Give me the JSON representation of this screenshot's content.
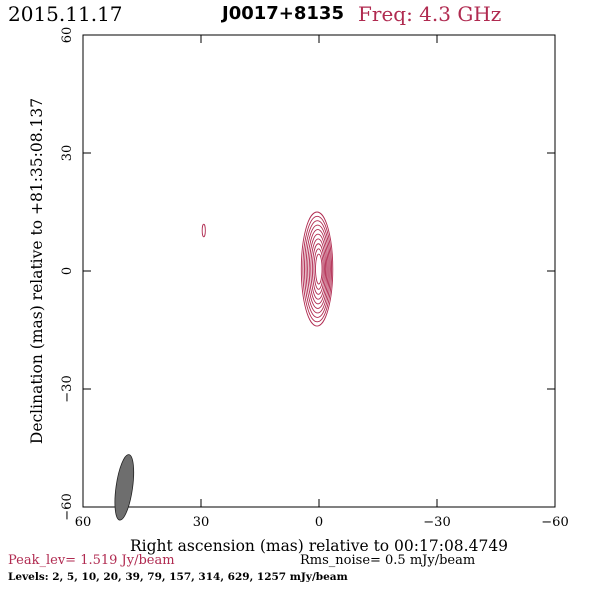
{
  "header": {
    "date": "2015.11.17",
    "source": "J0017+8135",
    "freq": "Freq: 4.3 GHz"
  },
  "chart_data": {
    "type": "contour",
    "xlabel": "Right ascension (mas) relative to 00:17:08.4749",
    "ylabel": "Declination (mas) relative to +81:35:08.137",
    "xlim": [
      60,
      -60
    ],
    "ylim": [
      -60,
      60
    ],
    "xticks": [
      60,
      30,
      0,
      -30,
      -60
    ],
    "yticks": [
      60,
      30,
      0,
      -30,
      -60
    ],
    "xtick_labels": [
      "60",
      "30",
      "0",
      "−30",
      "−60"
    ],
    "ytick_labels": [
      "60",
      "30",
      "0",
      "−30",
      "−60"
    ],
    "core": {
      "x": 0.5,
      "y": 0.5,
      "contour_count": 10,
      "semi_major_outer": 14.5,
      "semi_minor_outer": 4.0
    },
    "knot": {
      "x": 29.3,
      "y": 10.3,
      "semi_major": 1.6,
      "semi_minor": 0.4
    },
    "beam": {
      "x": 49.5,
      "y": -55.0,
      "major": 8.4,
      "minor": 2.1
    },
    "contour_color": "#b02a50",
    "beam_color": "#6e6e6e"
  },
  "footer": {
    "peak": "Peak_lev=  1.519 Jy/beam",
    "rms": "Rms_noise=  0.5 mJy/beam",
    "levels": "Levels:   2,    5,   10,   20,   39,   79,  157,  314,  629,  1257 mJy/beam"
  }
}
